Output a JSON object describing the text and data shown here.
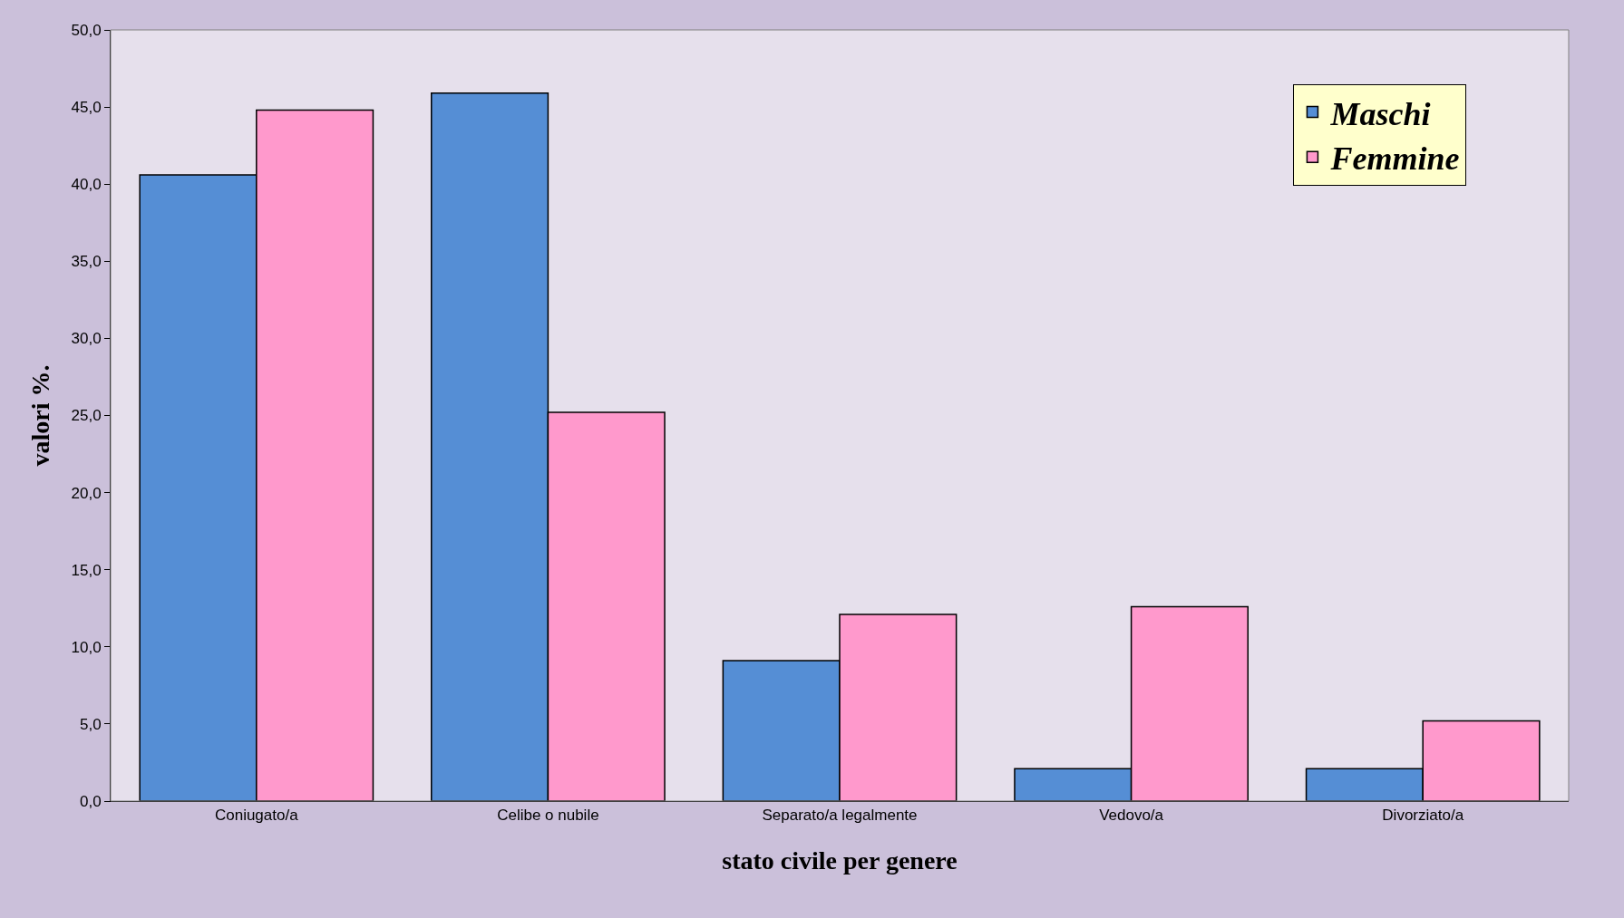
{
  "chart_data": {
    "type": "bar",
    "xlabel": "stato civile per genere",
    "ylabel": "valori %.",
    "categories": [
      "Coniugato/a",
      "Celibe o nubile",
      "Separato/a legalmente",
      "Vedovo/a",
      "Divorziato/a"
    ],
    "series": [
      {
        "name": "Maschi",
        "color": "#558ed5",
        "values": [
          40.6,
          45.9,
          9.1,
          2.1,
          2.1
        ]
      },
      {
        "name": "Femmine",
        "color": "#ff99cc",
        "values": [
          44.8,
          25.2,
          12.1,
          12.6,
          5.2
        ]
      }
    ],
    "ylim": [
      0,
      50
    ],
    "yticks": [
      {
        "value": 0,
        "label": "0,0"
      },
      {
        "value": 5,
        "label": "5,0"
      },
      {
        "value": 10,
        "label": "10,0"
      },
      {
        "value": 15,
        "label": "15,0"
      },
      {
        "value": 20,
        "label": "20,0"
      },
      {
        "value": 25,
        "label": "25,0"
      },
      {
        "value": 30,
        "label": "30,0"
      },
      {
        "value": 35,
        "label": "35,0"
      },
      {
        "value": 40,
        "label": "40,0"
      },
      {
        "value": 45,
        "label": "45,0"
      },
      {
        "value": 50,
        "label": "50,0"
      }
    ],
    "grid": false,
    "legend": "top right"
  }
}
